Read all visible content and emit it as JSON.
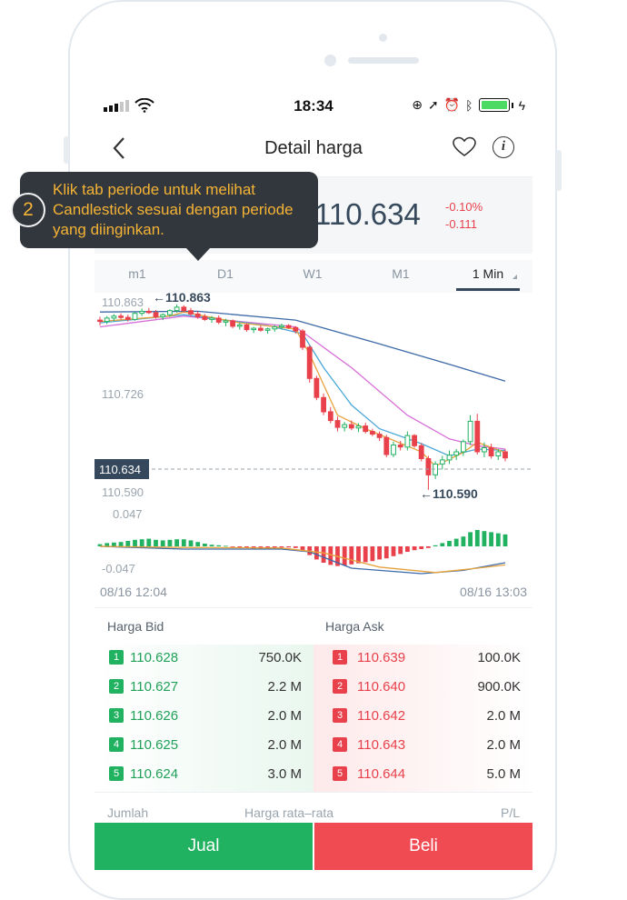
{
  "status": {
    "time": "18:34"
  },
  "header": {
    "title": "Detail harga"
  },
  "price": {
    "current": "110.634",
    "change_pct": "-0.10%",
    "change_abs": "-0.111"
  },
  "tabs": [
    {
      "label": "m1",
      "active": false
    },
    {
      "label": "D1",
      "active": false
    },
    {
      "label": "W1",
      "active": false
    },
    {
      "label": "M1",
      "active": false
    },
    {
      "label": "1 Min",
      "active": true
    }
  ],
  "chart": {
    "y_labels": {
      "high": "110.863",
      "mid": "110.726",
      "current": "110.634",
      "low": "110.590"
    },
    "high_marker": "110.863",
    "low_marker": "110.590",
    "macd_labels": {
      "top": "0.047",
      "bottom": "-0.047"
    },
    "start_time": "08/16 12:04",
    "end_time": "08/16 13:03"
  },
  "chart_data": {
    "type": "candlestick",
    "ylim": [
      110.575,
      110.875
    ],
    "colors": {
      "up": "#21b261",
      "down": "#e8414b",
      "ma_fast": "#e6a23c",
      "ma_mid": "#4aa8d8",
      "ma_slow": "#d86fd8",
      "ma_long": "#3d6aa8"
    },
    "candles": [
      [
        110.84,
        110.845,
        110.832,
        110.838
      ],
      [
        110.838,
        110.846,
        110.834,
        110.843
      ],
      [
        110.843,
        110.849,
        110.839,
        110.846
      ],
      [
        110.846,
        110.85,
        110.841,
        110.844
      ],
      [
        110.844,
        110.848,
        110.838,
        110.841
      ],
      [
        110.841,
        110.852,
        110.839,
        110.85
      ],
      [
        110.85,
        110.857,
        110.846,
        110.853
      ],
      [
        110.853,
        110.858,
        110.849,
        110.851
      ],
      [
        110.851,
        110.855,
        110.842,
        110.845
      ],
      [
        110.845,
        110.85,
        110.84,
        110.848
      ],
      [
        110.848,
        110.856,
        110.845,
        110.854
      ],
      [
        110.854,
        110.863,
        110.851,
        110.859
      ],
      [
        110.859,
        110.862,
        110.851,
        110.854
      ],
      [
        110.854,
        110.858,
        110.846,
        110.849
      ],
      [
        110.849,
        110.853,
        110.842,
        110.845
      ],
      [
        110.845,
        110.849,
        110.839,
        110.841
      ],
      [
        110.841,
        110.846,
        110.836,
        110.843
      ],
      [
        110.843,
        110.847,
        110.834,
        110.837
      ],
      [
        110.837,
        110.842,
        110.831,
        110.839
      ],
      [
        110.839,
        110.841,
        110.828,
        110.831
      ],
      [
        110.831,
        110.836,
        110.826,
        110.833
      ],
      [
        110.833,
        110.835,
        110.823,
        110.826
      ],
      [
        110.826,
        110.83,
        110.821,
        110.828
      ],
      [
        110.828,
        110.832,
        110.823,
        110.825
      ],
      [
        110.825,
        110.829,
        110.82,
        110.827
      ],
      [
        110.827,
        110.833,
        110.823,
        110.83
      ],
      [
        110.83,
        110.835,
        110.826,
        110.832
      ],
      [
        110.832,
        110.834,
        110.827,
        110.829
      ],
      [
        110.829,
        110.831,
        110.82,
        110.824
      ],
      [
        110.824,
        110.827,
        110.796,
        110.8
      ],
      [
        110.8,
        110.803,
        110.748,
        110.754
      ],
      [
        110.754,
        110.758,
        110.722,
        110.726
      ],
      [
        110.726,
        110.732,
        110.7,
        110.705
      ],
      [
        110.705,
        110.712,
        110.688,
        110.692
      ],
      [
        110.692,
        110.698,
        110.676,
        110.682
      ],
      [
        110.682,
        110.69,
        110.676,
        110.686
      ],
      [
        110.686,
        110.692,
        110.678,
        110.681
      ],
      [
        110.681,
        110.688,
        110.675,
        110.684
      ],
      [
        110.684,
        110.689,
        110.673,
        110.676
      ],
      [
        110.676,
        110.68,
        110.669,
        110.672
      ],
      [
        110.672,
        110.676,
        110.662,
        110.667
      ],
      [
        110.667,
        110.671,
        110.638,
        110.642
      ],
      [
        110.642,
        110.661,
        110.638,
        110.656
      ],
      [
        110.656,
        110.662,
        110.648,
        110.653
      ],
      [
        110.653,
        110.676,
        110.648,
        110.67
      ],
      [
        110.67,
        110.672,
        110.652,
        110.655
      ],
      [
        110.655,
        110.659,
        110.632,
        110.636
      ],
      [
        110.636,
        110.64,
        110.59,
        110.612
      ],
      [
        110.612,
        110.632,
        110.606,
        110.628
      ],
      [
        110.628,
        110.64,
        110.62,
        110.634
      ],
      [
        110.634,
        110.648,
        110.628,
        110.641
      ],
      [
        110.641,
        110.65,
        110.634,
        110.646
      ],
      [
        110.646,
        110.664,
        110.64,
        110.661
      ],
      [
        110.661,
        110.7,
        110.656,
        110.691
      ],
      [
        110.691,
        110.702,
        110.642,
        110.646
      ],
      [
        110.646,
        110.66,
        110.638,
        110.652
      ],
      [
        110.652,
        110.658,
        110.636,
        110.64
      ],
      [
        110.64,
        110.65,
        110.634,
        110.646
      ],
      [
        110.646,
        110.65,
        110.632,
        110.637
      ]
    ],
    "ma_fast": [
      [
        0,
        110.838
      ],
      [
        10,
        110.846
      ],
      [
        12,
        110.852
      ],
      [
        20,
        110.836
      ],
      [
        28,
        110.827
      ],
      [
        30,
        110.79
      ],
      [
        34,
        110.7
      ],
      [
        38,
        110.68
      ],
      [
        46,
        110.646
      ],
      [
        48,
        110.625
      ],
      [
        52,
        110.645
      ],
      [
        54,
        110.66
      ],
      [
        58,
        110.645
      ]
    ],
    "ma_mid": [
      [
        0,
        110.836
      ],
      [
        12,
        110.848
      ],
      [
        24,
        110.832
      ],
      [
        29,
        110.82
      ],
      [
        32,
        110.77
      ],
      [
        36,
        110.715
      ],
      [
        40,
        110.68
      ],
      [
        46,
        110.658
      ],
      [
        50,
        110.64
      ],
      [
        54,
        110.65
      ],
      [
        58,
        110.648
      ]
    ],
    "ma_slow": [
      [
        0,
        110.83
      ],
      [
        12,
        110.846
      ],
      [
        28,
        110.83
      ],
      [
        36,
        110.77
      ],
      [
        44,
        110.7
      ],
      [
        50,
        110.665
      ],
      [
        54,
        110.655
      ],
      [
        58,
        110.65
      ]
    ],
    "ma_long": [
      [
        0,
        110.852
      ],
      [
        14,
        110.853
      ],
      [
        28,
        110.84
      ],
      [
        40,
        110.805
      ],
      [
        50,
        110.775
      ],
      [
        58,
        110.75
      ]
    ],
    "macd_hist": [
      0.004,
      0.006,
      0.007,
      0.008,
      0.01,
      0.012,
      0.013,
      0.014,
      0.012,
      0.011,
      0.012,
      0.013,
      0.013,
      0.011,
      0.008,
      0.005,
      0.003,
      0.002,
      0.001,
      -0.001,
      -0.002,
      -0.003,
      -0.004,
      -0.004,
      -0.004,
      -0.003,
      -0.002,
      -0.002,
      -0.003,
      -0.008,
      -0.016,
      -0.024,
      -0.03,
      -0.034,
      -0.036,
      -0.035,
      -0.033,
      -0.031,
      -0.029,
      -0.027,
      -0.024,
      -0.022,
      -0.018,
      -0.014,
      -0.01,
      -0.007,
      -0.005,
      -0.003,
      0.002,
      0.006,
      0.01,
      0.014,
      0.018,
      0.026,
      0.03,
      0.028,
      0.026,
      0.024,
      0.022
    ],
    "macd_line": [
      [
        0,
        0.0
      ],
      [
        12,
        -0.005
      ],
      [
        26,
        -0.005
      ],
      [
        30,
        -0.01
      ],
      [
        36,
        -0.04
      ],
      [
        46,
        -0.05
      ],
      [
        52,
        -0.044
      ],
      [
        58,
        -0.03
      ]
    ],
    "signal_line": [
      [
        0,
        0.0
      ],
      [
        12,
        -0.002
      ],
      [
        26,
        -0.003
      ],
      [
        32,
        -0.012
      ],
      [
        40,
        -0.038
      ],
      [
        48,
        -0.048
      ],
      [
        54,
        -0.04
      ],
      [
        58,
        -0.034
      ]
    ]
  },
  "orderbook": {
    "bid_header": "Harga Bid",
    "ask_header": "Harga Ask",
    "bids": [
      {
        "rank": "1",
        "price": "110.628",
        "qty": "750.0K"
      },
      {
        "rank": "2",
        "price": "110.627",
        "qty": "2.2 M"
      },
      {
        "rank": "3",
        "price": "110.626",
        "qty": "2.0 M"
      },
      {
        "rank": "4",
        "price": "110.625",
        "qty": "2.0 M"
      },
      {
        "rank": "5",
        "price": "110.624",
        "qty": "3.0 M"
      }
    ],
    "asks": [
      {
        "rank": "1",
        "price": "110.639",
        "qty": "100.0K"
      },
      {
        "rank": "2",
        "price": "110.640",
        "qty": "900.0K"
      },
      {
        "rank": "3",
        "price": "110.642",
        "qty": "2.0 M"
      },
      {
        "rank": "4",
        "price": "110.643",
        "qty": "2.0 M"
      },
      {
        "rank": "5",
        "price": "110.644",
        "qty": "5.0 M"
      }
    ]
  },
  "footer": {
    "qty_label": "Jumlah",
    "avg_label": "Harga rata–rata",
    "pl_label": "P/L"
  },
  "actions": {
    "sell": "Jual",
    "buy": "Beli"
  },
  "tooltip": {
    "step": "2",
    "text": "Klik tab periode untuk melihat Candlestick sesuai dengan periode yang diinginkan."
  }
}
